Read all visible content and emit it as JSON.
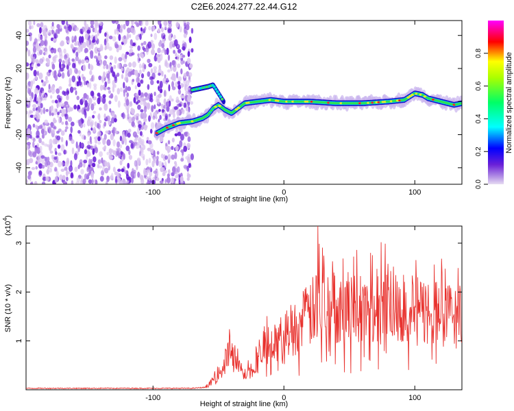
{
  "title": "C2E6.2024.277.22.44.G12",
  "colors": {
    "snr_line": "#e8302c",
    "axis": "#000000",
    "noise_light": "#d9c2ef",
    "noise_mid": "#a878e4",
    "noise_dark": "#6a20d8",
    "colorbar": [
      "#ff00ff",
      "#ff0000",
      "#ffff00",
      "#00ff00",
      "#00ffff",
      "#0000ff",
      "#e0d0f0"
    ]
  },
  "chart_data": [
    {
      "type": "heatmap",
      "title": "C2E6.2024.277.22.44.G12",
      "xlabel": "Height of straight line (km)",
      "ylabel": "Frequency (Hz)",
      "xlim": [
        -197,
        136
      ],
      "ylim": [
        -50,
        49
      ],
      "xticks": [
        -100,
        0,
        100
      ],
      "xtick_labels": [
        "-100",
        "0",
        "100"
      ],
      "yticks": [
        -40,
        -20,
        0,
        20,
        40
      ],
      "ytick_labels": [
        "-40",
        "-20",
        "0",
        "20",
        "40"
      ],
      "colorbar": {
        "label": "Normalized spectral amplitude",
        "range": [
          0,
          1
        ],
        "ticks": [
          0.0,
          0.2,
          0.4,
          0.6,
          0.8
        ],
        "tick_labels": [
          "0.0",
          "0.2",
          "0.4",
          "0.6",
          "0.8"
        ]
      },
      "noise_region_x": [
        -197,
        -70
      ],
      "ridge": {
        "x": [
          -97,
          -90,
          -80,
          -70,
          -62,
          -58,
          -54,
          -50,
          -45,
          -40,
          -35,
          -30,
          -20,
          -10,
          0,
          20,
          40,
          60,
          80,
          92,
          96,
          100,
          106,
          110,
          120,
          130,
          136
        ],
        "y": [
          -19,
          -16,
          -13,
          -12,
          -10,
          -8,
          -4,
          -2,
          -5,
          -7,
          -4,
          -1,
          0,
          1,
          0,
          0,
          -1,
          -1,
          0,
          1,
          3,
          5,
          4,
          2,
          0,
          -2,
          -1
        ]
      },
      "upper_branch": {
        "x": [
          -70,
          -64,
          -58,
          -54,
          -50,
          -46
        ],
        "y": [
          7,
          8,
          9,
          10,
          5,
          0
        ]
      }
    },
    {
      "type": "line",
      "xlabel": "Height of straight line (km)",
      "ylabel": "SNR (10 * v/v)",
      "y_multiplier_label": "(x10",
      "y_multiplier_exp": "4",
      "xlim": [
        -197,
        136
      ],
      "ylim": [
        0,
        3.35
      ],
      "xticks": [
        -100,
        0,
        100
      ],
      "xtick_labels": [
        "-100",
        "0",
        "100"
      ],
      "yticks": [
        1,
        2,
        3
      ],
      "ytick_labels": [
        "1",
        "2",
        "3"
      ],
      "envelope": {
        "x": [
          -197,
          -70,
          -60,
          -50,
          -46,
          -40,
          -36,
          -30,
          -24,
          -20,
          -15,
          -10,
          -6,
          0,
          10,
          20,
          26,
          30,
          40,
          50,
          60,
          70,
          80,
          90,
          100,
          110,
          120,
          130,
          136
        ],
        "y": [
          0.03,
          0.03,
          0.05,
          0.3,
          0.5,
          0.9,
          0.5,
          0.3,
          0.45,
          0.6,
          0.8,
          1.05,
          0.9,
          1.15,
          1.3,
          1.55,
          1.7,
          1.75,
          1.7,
          1.65,
          1.6,
          1.65,
          1.75,
          1.7,
          1.6,
          1.6,
          1.55,
          1.5,
          1.55
        ]
      },
      "peak": {
        "x": 26,
        "y": 3.35
      }
    }
  ]
}
